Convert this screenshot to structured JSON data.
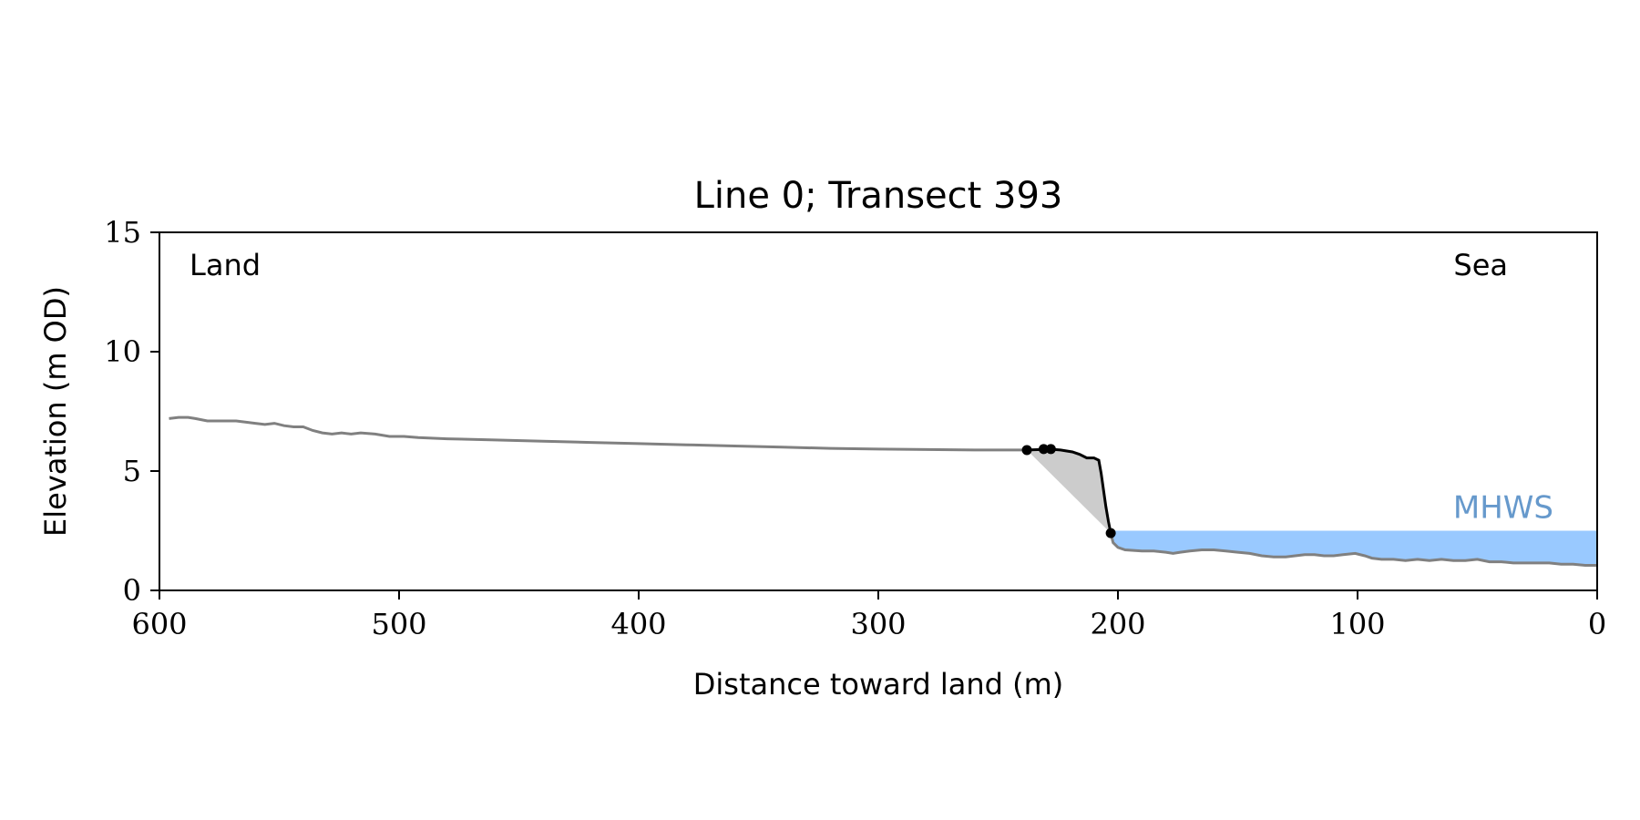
{
  "chart_data": {
    "type": "line",
    "title": "Line 0; Transect 393",
    "xlabel": "Distance toward land (m)",
    "ylabel": "Elevation (m OD)",
    "xlim": [
      600,
      0
    ],
    "ylim": [
      0,
      15
    ],
    "x_inverted": true,
    "grid": false,
    "xticks": [
      600,
      500,
      400,
      300,
      200,
      100,
      0
    ],
    "yticks": [
      0,
      5,
      10,
      15
    ],
    "annotations": {
      "land_label": "Land",
      "sea_label": "Sea",
      "mhws_label": "MHWS"
    },
    "mhws_level": 2.5,
    "colors": {
      "profile": "#808080",
      "cliff_profile": "#000000",
      "sea_fill": "#99c9ff",
      "mhws_text": "#6699cc",
      "cliff_fill": "#cccccc"
    },
    "profile": [
      [
        596,
        7.2
      ],
      [
        592,
        7.25
      ],
      [
        588,
        7.25
      ],
      [
        585,
        7.2
      ],
      [
        580,
        7.1
      ],
      [
        575,
        7.1
      ],
      [
        568,
        7.1
      ],
      [
        560,
        7.0
      ],
      [
        556,
        6.95
      ],
      [
        552,
        7.0
      ],
      [
        548,
        6.9
      ],
      [
        544,
        6.85
      ],
      [
        540,
        6.85
      ],
      [
        536,
        6.7
      ],
      [
        532,
        6.6
      ],
      [
        528,
        6.55
      ],
      [
        524,
        6.6
      ],
      [
        520,
        6.55
      ],
      [
        516,
        6.6
      ],
      [
        510,
        6.55
      ],
      [
        504,
        6.45
      ],
      [
        498,
        6.45
      ],
      [
        492,
        6.4
      ],
      [
        480,
        6.35
      ],
      [
        460,
        6.3
      ],
      [
        440,
        6.25
      ],
      [
        420,
        6.2
      ],
      [
        400,
        6.15
      ],
      [
        380,
        6.1
      ],
      [
        360,
        6.05
      ],
      [
        340,
        6.0
      ],
      [
        320,
        5.95
      ],
      [
        300,
        5.92
      ],
      [
        280,
        5.9
      ],
      [
        260,
        5.88
      ],
      [
        245,
        5.88
      ],
      [
        238,
        5.88
      ]
    ],
    "cliff_profile": [
      [
        238,
        5.88
      ],
      [
        232,
        5.9
      ],
      [
        229,
        5.92
      ],
      [
        224,
        5.88
      ],
      [
        219,
        5.8
      ],
      [
        216,
        5.7
      ],
      [
        213,
        5.55
      ],
      [
        210,
        5.55
      ],
      [
        208,
        5.45
      ],
      [
        207,
        4.9
      ],
      [
        206,
        4.2
      ],
      [
        205,
        3.5
      ],
      [
        204,
        2.9
      ],
      [
        203,
        2.4
      ]
    ],
    "sea_profile": [
      [
        203,
        2.4
      ],
      [
        202,
        2.0
      ],
      [
        200,
        1.8
      ],
      [
        197,
        1.7
      ],
      [
        190,
        1.65
      ],
      [
        185,
        1.65
      ],
      [
        180,
        1.6
      ],
      [
        177,
        1.55
      ],
      [
        174,
        1.6
      ],
      [
        170,
        1.65
      ],
      [
        165,
        1.7
      ],
      [
        160,
        1.7
      ],
      [
        155,
        1.65
      ],
      [
        150,
        1.6
      ],
      [
        145,
        1.55
      ],
      [
        140,
        1.45
      ],
      [
        135,
        1.4
      ],
      [
        130,
        1.4
      ],
      [
        126,
        1.45
      ],
      [
        122,
        1.5
      ],
      [
        118,
        1.5
      ],
      [
        114,
        1.45
      ],
      [
        110,
        1.45
      ],
      [
        106,
        1.5
      ],
      [
        101,
        1.55
      ],
      [
        97,
        1.45
      ],
      [
        94,
        1.35
      ],
      [
        90,
        1.3
      ],
      [
        85,
        1.3
      ],
      [
        80,
        1.25
      ],
      [
        75,
        1.3
      ],
      [
        70,
        1.25
      ],
      [
        65,
        1.3
      ],
      [
        60,
        1.25
      ],
      [
        55,
        1.25
      ],
      [
        50,
        1.3
      ],
      [
        45,
        1.2
      ],
      [
        40,
        1.2
      ],
      [
        35,
        1.15
      ],
      [
        30,
        1.15
      ],
      [
        25,
        1.15
      ],
      [
        20,
        1.15
      ],
      [
        15,
        1.1
      ],
      [
        10,
        1.1
      ],
      [
        5,
        1.05
      ],
      [
        0,
        1.05
      ]
    ],
    "cliff_fill_polygon": [
      [
        238,
        5.88
      ],
      [
        232,
        5.9
      ],
      [
        229,
        5.92
      ],
      [
        224,
        5.88
      ],
      [
        219,
        5.8
      ],
      [
        216,
        5.7
      ],
      [
        213,
        5.55
      ],
      [
        210,
        5.55
      ],
      [
        208,
        5.45
      ],
      [
        207,
        4.9
      ],
      [
        206,
        4.2
      ],
      [
        205,
        3.5
      ],
      [
        204,
        2.9
      ],
      [
        203,
        2.4
      ]
    ],
    "markers": [
      [
        238,
        5.88
      ],
      [
        231,
        5.92
      ],
      [
        228,
        5.92
      ],
      [
        203,
        2.4
      ]
    ]
  }
}
